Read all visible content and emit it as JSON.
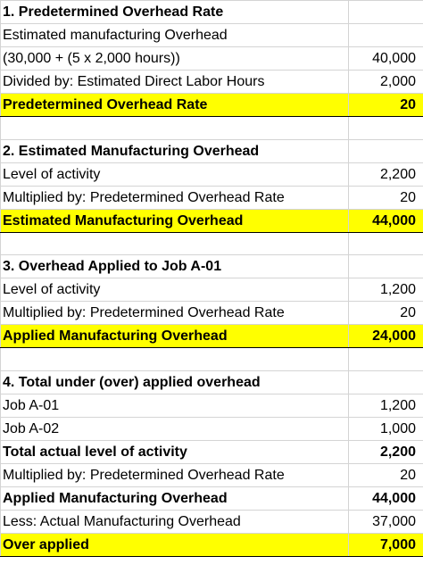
{
  "rows": [
    {
      "label": "1. Predetermined Overhead Rate",
      "value": "",
      "style": "header"
    },
    {
      "label": "Estimated manufacturing Overhead",
      "value": "",
      "style": "normal"
    },
    {
      "label": "(30,000 + (5 x 2,000 hours))",
      "value": "40,000",
      "style": "normal"
    },
    {
      "label": "Divided by: Estimated Direct Labor Hours",
      "value": "2,000",
      "style": "normal"
    },
    {
      "label": "Predetermined Overhead Rate",
      "value": "20",
      "style": "highlight"
    },
    {
      "label": "",
      "value": "",
      "style": "blank"
    },
    {
      "label": "2. Estimated Manufacturing Overhead",
      "value": "",
      "style": "header"
    },
    {
      "label": "Level of activity",
      "value": "2,200",
      "style": "normal"
    },
    {
      "label": "Multiplied by: Predetermined Overhead Rate",
      "value": "20",
      "style": "normal"
    },
    {
      "label": "Estimated Manufacturing Overhead",
      "value": "44,000",
      "style": "highlight"
    },
    {
      "label": "",
      "value": "",
      "style": "blank"
    },
    {
      "label": "3. Overhead Applied to Job A-01",
      "value": "",
      "style": "header"
    },
    {
      "label": "Level of activity",
      "value": "1,200",
      "style": "normal"
    },
    {
      "label": "Multiplied by: Predetermined Overhead Rate",
      "value": "20",
      "style": "normal"
    },
    {
      "label": "Applied Manufacturing Overhead",
      "value": "24,000",
      "style": "highlight"
    },
    {
      "label": "",
      "value": "",
      "style": "blank"
    },
    {
      "label": "4. Total under (over) applied overhead",
      "value": "",
      "style": "header"
    },
    {
      "label": "Job A-01",
      "value": "1,200",
      "style": "normal"
    },
    {
      "label": "Job A-02",
      "value": "1,000",
      "style": "normal"
    },
    {
      "label": "Total actual level of activity",
      "value": "2,200",
      "style": "bold"
    },
    {
      "label": "Multiplied by: Predetermined Overhead Rate",
      "value": "20",
      "style": "normal"
    },
    {
      "label": "Applied Manufacturing Overhead",
      "value": "44,000",
      "style": "bold"
    },
    {
      "label": "Less: Actual Manufacturing Overhead",
      "value": "37,000",
      "style": "normal"
    },
    {
      "label": "Over applied",
      "value": "7,000",
      "style": "highlight"
    }
  ],
  "colors": {
    "highlight": "#ffff00",
    "gridline": "#d4d4d4"
  }
}
